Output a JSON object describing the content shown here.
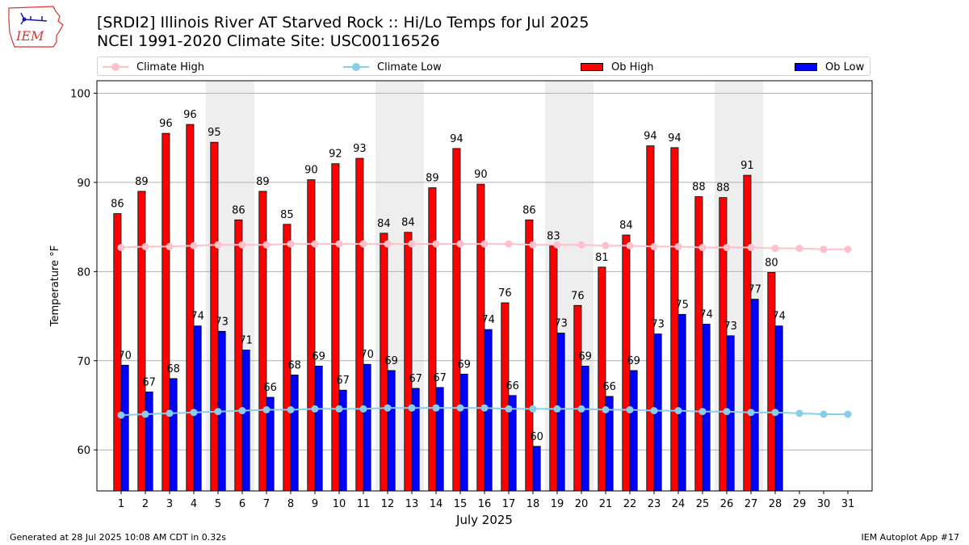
{
  "header": {
    "logo_text": "IEM",
    "title_line1": "[SRDI2] Illinois River  AT Starved Rock :: Hi/Lo Temps for Jul 2025",
    "title_line2": "NCEI 1991-2020 Climate Site: USC00116526"
  },
  "legend": {
    "items": [
      {
        "label": "Climate High",
        "kind": "line",
        "color": "#ffc0cb"
      },
      {
        "label": "Climate Low",
        "kind": "line",
        "color": "#87ceeb"
      },
      {
        "label": "Ob High",
        "kind": "box",
        "color": "#ff0000"
      },
      {
        "label": "Ob Low",
        "kind": "box",
        "color": "#0000ff"
      }
    ]
  },
  "footer": {
    "left": "Generated at 28 Jul 2025 10:08 AM CDT in 0.32s",
    "right": "IEM Autoplot App #17"
  },
  "chart_data": {
    "type": "bar",
    "xlabel": "July 2025",
    "ylabel": "Temperature °F",
    "ylim": [
      55.4,
      101.4
    ],
    "yticks": [
      60,
      70,
      80,
      90,
      100
    ],
    "grid": "horizontal",
    "legend_position": "top",
    "weekend_shading": [
      [
        5,
        6
      ],
      [
        12,
        13
      ],
      [
        19,
        20
      ],
      [
        26,
        27
      ]
    ],
    "categories": [
      1,
      2,
      3,
      4,
      5,
      6,
      7,
      8,
      9,
      10,
      11,
      12,
      13,
      14,
      15,
      16,
      17,
      18,
      19,
      20,
      21,
      22,
      23,
      24,
      25,
      26,
      27,
      28,
      29,
      30,
      31
    ],
    "series": [
      {
        "name": "Ob High",
        "type": "bar",
        "color": "#ff0000",
        "values": [
          86.5,
          89,
          95.5,
          96.5,
          94.5,
          85.8,
          89,
          85.3,
          90.3,
          92.1,
          92.7,
          84.3,
          84.4,
          89.4,
          93.8,
          89.8,
          76.5,
          85.8,
          82.9,
          76.2,
          80.5,
          84.1,
          94.1,
          93.9,
          88.4,
          88.3,
          90.8,
          79.9,
          null,
          null,
          null
        ],
        "labels": [
          86,
          89,
          96,
          96,
          95,
          86,
          89,
          85,
          90,
          92,
          93,
          84,
          84,
          89,
          94,
          90,
          76,
          86,
          83,
          76,
          81,
          84,
          94,
          94,
          88,
          88,
          91,
          80,
          null,
          null,
          null
        ]
      },
      {
        "name": "Ob Low",
        "type": "bar",
        "color": "#0000ff",
        "values": [
          69.5,
          66.5,
          68,
          73.9,
          73.3,
          71.2,
          65.9,
          68.4,
          69.4,
          66.7,
          69.6,
          68.9,
          66.9,
          67,
          68.5,
          73.5,
          66.1,
          60.4,
          73.1,
          69.4,
          66,
          68.9,
          73,
          75.2,
          74.1,
          72.8,
          76.9,
          73.9,
          null,
          null,
          null
        ],
        "labels": [
          70,
          67,
          68,
          74,
          73,
          71,
          66,
          68,
          69,
          67,
          70,
          69,
          67,
          67,
          69,
          74,
          66,
          60,
          73,
          69,
          66,
          69,
          73,
          75,
          74,
          73,
          77,
          74,
          null,
          null,
          null
        ]
      },
      {
        "name": "Climate High",
        "type": "line",
        "color": "#ffc0cb",
        "values": [
          82.7,
          82.8,
          82.8,
          82.9,
          83,
          83,
          83,
          83.1,
          83.1,
          83.1,
          83.1,
          83.1,
          83.1,
          83.1,
          83.1,
          83.1,
          83.1,
          83,
          83,
          83,
          82.9,
          82.9,
          82.8,
          82.8,
          82.7,
          82.7,
          82.7,
          82.6,
          82.6,
          82.5,
          82.5
        ]
      },
      {
        "name": "Climate Low",
        "type": "line",
        "color": "#87ceeb",
        "values": [
          63.9,
          64,
          64.1,
          64.2,
          64.3,
          64.4,
          64.5,
          64.5,
          64.6,
          64.6,
          64.6,
          64.7,
          64.7,
          64.7,
          64.7,
          64.7,
          64.6,
          64.6,
          64.6,
          64.6,
          64.5,
          64.5,
          64.4,
          64.4,
          64.3,
          64.3,
          64.2,
          64.2,
          64.1,
          64,
          64
        ]
      }
    ]
  }
}
